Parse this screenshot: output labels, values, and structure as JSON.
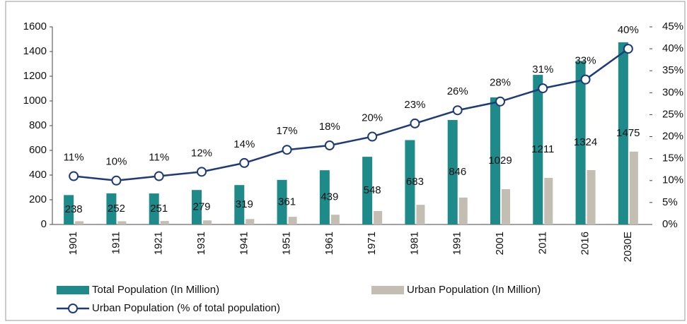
{
  "chart_data": {
    "type": "bar",
    "categories": [
      "1901",
      "1911",
      "1921",
      "1931",
      "1941",
      "1951",
      "1961",
      "1971",
      "1981",
      "1991",
      "2001",
      "2011",
      "2016",
      "2030E"
    ],
    "series": [
      {
        "name": "Total Population (In Million)",
        "color": "#1f8a8a",
        "values": [
          238,
          252,
          251,
          279,
          319,
          361,
          439,
          548,
          683,
          846,
          1029,
          1211,
          1324,
          1475
        ]
      },
      {
        "name": "Urban Population (In Million)",
        "color": "#c4bdb2",
        "values": [
          26,
          26,
          28,
          33,
          44,
          62,
          79,
          109,
          159,
          218,
          286,
          377,
          440,
          590
        ]
      },
      {
        "name": "Urban Population (% of total population)",
        "color": "#1f3a7a",
        "type": "line",
        "axis": "y2",
        "values": [
          11,
          10,
          11,
          12,
          14,
          17,
          18,
          20,
          23,
          26,
          28,
          31,
          33,
          40
        ],
        "value_labels": [
          "11%",
          "10%",
          "11%",
          "12%",
          "14%",
          "17%",
          "18%",
          "20%",
          "23%",
          "26%",
          "28%",
          "31%",
          "33%",
          "40%"
        ]
      }
    ],
    "ylim": [
      0,
      1600
    ],
    "yticks": [
      0,
      200,
      400,
      600,
      800,
      1000,
      1200,
      1400,
      1600
    ],
    "y2lim": [
      0,
      45
    ],
    "y2ticks": [
      {
        "value": 0,
        "label": "0%"
      },
      {
        "value": 5,
        "label": "5%"
      },
      {
        "value": 10,
        "label": "10%"
      },
      {
        "value": 15,
        "label": "15%"
      },
      {
        "value": 20,
        "label": "20%"
      },
      {
        "value": 25,
        "label": "25%"
      },
      {
        "value": 30,
        "label": "30%"
      },
      {
        "value": 35,
        "label": "35%"
      },
      {
        "value": 40,
        "label": "40%"
      },
      {
        "value": 45,
        "label": "45%"
      }
    ]
  }
}
